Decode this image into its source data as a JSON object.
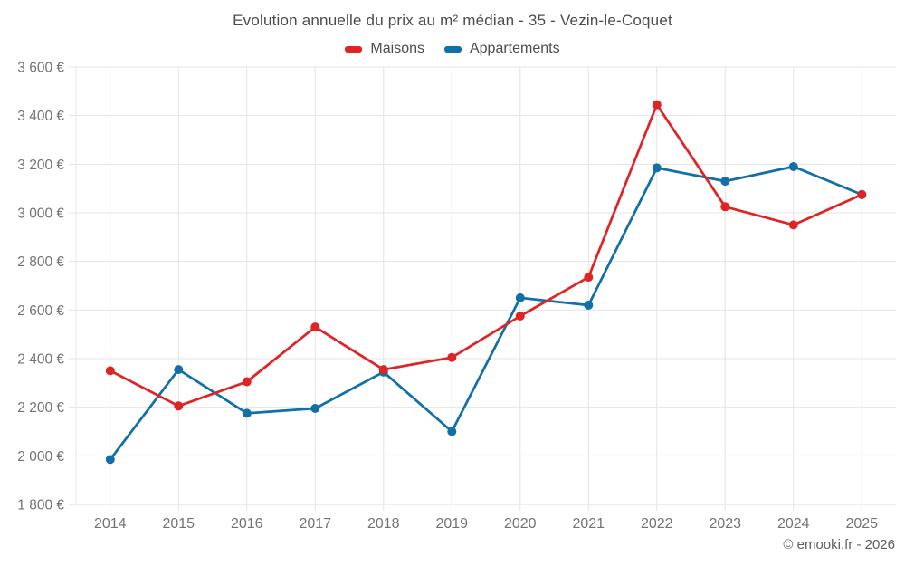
{
  "title": "Evolution annuelle du prix au m² médian - 35 - Vezin-le-Coquet",
  "watermark": "© emooki.fr - 2026",
  "colors": {
    "maisons": "#e02426",
    "appartements": "#1270a8",
    "grid": "#e4e4e4",
    "bottom_axis": "#d9d9d9",
    "axis_text": "#737373",
    "title_text": "#4c4c4c"
  },
  "legend": [
    {
      "label": "Maisons",
      "color": "#e02426"
    },
    {
      "label": "Appartements",
      "color": "#1270a8"
    }
  ],
  "chart_data": {
    "type": "line",
    "title": "Evolution annuelle du prix au m² médian - 35 - Vezin-le-Coquet",
    "x": [
      "2014",
      "2015",
      "2016",
      "2017",
      "2018",
      "2019",
      "2020",
      "2021",
      "2022",
      "2023",
      "2024",
      "2025"
    ],
    "series": [
      {
        "name": "Maisons",
        "color": "#e02426",
        "values": [
          2350,
          2205,
          2305,
          2530,
          2355,
          2405,
          2575,
          2735,
          3445,
          3025,
          2950,
          3075
        ]
      },
      {
        "name": "Appartements",
        "color": "#1270a8",
        "values": [
          1985,
          2355,
          2175,
          2195,
          2345,
          2100,
          2650,
          2620,
          3185,
          3130,
          3190,
          3075
        ]
      }
    ],
    "ylim": [
      1800,
      3600
    ],
    "yticks": [
      1800,
      2000,
      2200,
      2400,
      2600,
      2800,
      3000,
      3200,
      3400,
      3600
    ],
    "ytick_labels": [
      "1 800 €",
      "2 000 €",
      "2 200 €",
      "2 400 €",
      "2 600 €",
      "2 800 €",
      "3 000 €",
      "3 200 €",
      "3 400 €",
      "3 600 €"
    ],
    "grid": true,
    "legend_position": "top",
    "marker_radius": 5,
    "line_width": 2.75
  }
}
